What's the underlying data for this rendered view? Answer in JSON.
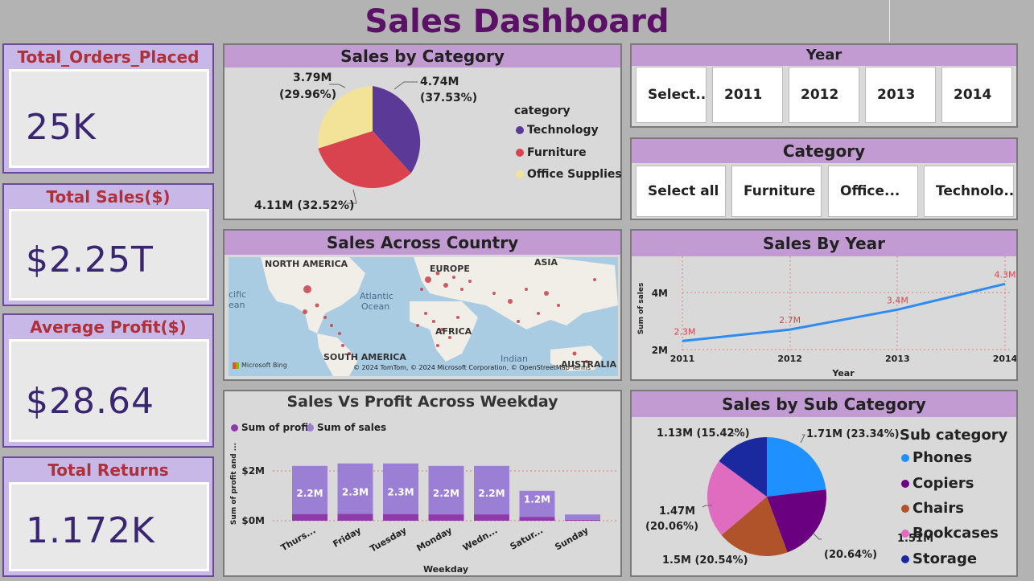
{
  "dashboard": {
    "title": "Sales Dashboard"
  },
  "kpis": [
    {
      "title": "Total_Orders_Placed",
      "value": "25K"
    },
    {
      "title": "Total Sales($)",
      "value": "$2.25T"
    },
    {
      "title": "Average Profit($)",
      "value": "$28.64"
    },
    {
      "title": "Total Returns",
      "value": "1.172K"
    }
  ],
  "year_slicer": {
    "title": "Year",
    "options": [
      "Select...",
      "2011",
      "2012",
      "2013",
      "2014"
    ]
  },
  "category_slicer": {
    "title": "Category",
    "options": [
      "Select all",
      "Furniture",
      "Office...",
      "Technolo..."
    ]
  },
  "sales_by_category": {
    "title": "Sales by Category",
    "legend_title": "category",
    "labels": {
      "technology": "4.74M",
      "technology_pct": "(37.53%)",
      "office": "3.79M",
      "office_pct": "(29.96%)",
      "furniture": "4.11M (32.52%)"
    },
    "colors": {
      "technology": "#5a3a96",
      "furniture": "#d9434e",
      "office_supplies": "#f2e398"
    },
    "legend": [
      "Technology",
      "Furniture",
      "Office Supplies"
    ]
  },
  "map": {
    "title": "Sales Across Country",
    "regions": {
      "na": "NORTH AMERICA",
      "europe": "EUROPE",
      "asia": "ASIA",
      "africa": "AFRICA",
      "sa": "SOUTH AMERICA",
      "australia": "AUSTRALIA",
      "atlantic": "Atlantic",
      "atlantic2": "Ocean",
      "indian": "Indian",
      "pacific1": "cific",
      "pacific2": "ean"
    },
    "attribution": "© 2024 TomTom, © 2024 Microsoft Corporation, © OpenStreetMap  Terms",
    "brand": "Microsoft Bing"
  },
  "sales_by_year": {
    "title": "Sales By Year",
    "ylabel": "Sum of sales",
    "xlabel": "Year",
    "yticks": [
      "4M",
      "2M"
    ],
    "line_color": "#2e8cf0"
  },
  "weekday_chart": {
    "title": "Sales Vs Profit Across Weekday",
    "legend": [
      "Sum of profit",
      "Sum of sales"
    ],
    "ylabel": "Sum of profit and ...",
    "xlabel": "Weekday",
    "yticks": [
      "$2M",
      "$0M"
    ],
    "colors": {
      "profit": "#8e3aa8",
      "sales": "#9b7fd4"
    }
  },
  "sub_category": {
    "title": "Sales by Sub Category",
    "legend_title": "Sub category",
    "legend": [
      {
        "name": "Phones",
        "color": "#1e90ff"
      },
      {
        "name": "Copiers",
        "color": "#6a0080"
      },
      {
        "name": "Chairs",
        "color": "#b0522a"
      },
      {
        "name": "Bookcases",
        "color": "#e06cc0"
      },
      {
        "name": "Storage",
        "color": "#1a2a9e"
      }
    ],
    "labels": {
      "phones": "1.71M (23.34%)",
      "copiers1": "1.51M",
      "copiers2": "(20.64%)",
      "chairs": "1.5M (20.54%)",
      "bookcases1": "1.47M",
      "bookcases2": "(20.06%)",
      "storage": "1.13M (15.42%)"
    }
  },
  "chart_data": [
    {
      "type": "pie",
      "title": "Sales by Category",
      "categories": [
        "Technology",
        "Furniture",
        "Office Supplies"
      ],
      "values": [
        4.74,
        4.11,
        3.79
      ],
      "percent": [
        37.53,
        32.52,
        29.96
      ],
      "legend_title": "category"
    },
    {
      "type": "line",
      "title": "Sales By Year",
      "x": [
        2011,
        2012,
        2013,
        2014
      ],
      "values": [
        2.3,
        2.7,
        3.4,
        4.3
      ],
      "data_labels": [
        "2.3M",
        "2.7M",
        "3.4M",
        "4.3M"
      ],
      "xlabel": "Year",
      "ylabel": "Sum of sales",
      "ylim": [
        2,
        4.5
      ]
    },
    {
      "type": "bar",
      "title": "Sales Vs Profit Across Weekday",
      "categories": [
        "Thurs...",
        "Friday",
        "Tuesday",
        "Monday",
        "Wedn...",
        "Satur...",
        "Sunday"
      ],
      "series": [
        {
          "name": "Sum of sales",
          "values": [
            2.2,
            2.3,
            2.3,
            2.2,
            2.2,
            1.2,
            0.25
          ]
        },
        {
          "name": "Sum of profit",
          "values": [
            0.26,
            0.27,
            0.26,
            0.25,
            0.25,
            0.15,
            0.03
          ]
        }
      ],
      "data_labels": [
        "2.2M",
        "2.3M",
        "2.3M",
        "2.2M",
        "2.2M",
        "1.2M",
        ""
      ],
      "xlabel": "Weekday",
      "ylabel": "Sum of profit and ...",
      "ylim": [
        0,
        2.6
      ]
    },
    {
      "type": "pie",
      "title": "Sales by Sub Category",
      "categories": [
        "Phones",
        "Copiers",
        "Chairs",
        "Bookcases",
        "Storage"
      ],
      "values": [
        1.71,
        1.51,
        1.5,
        1.47,
        1.13
      ],
      "percent": [
        23.34,
        20.64,
        20.54,
        20.06,
        15.42
      ],
      "legend_title": "Sub category"
    }
  ]
}
